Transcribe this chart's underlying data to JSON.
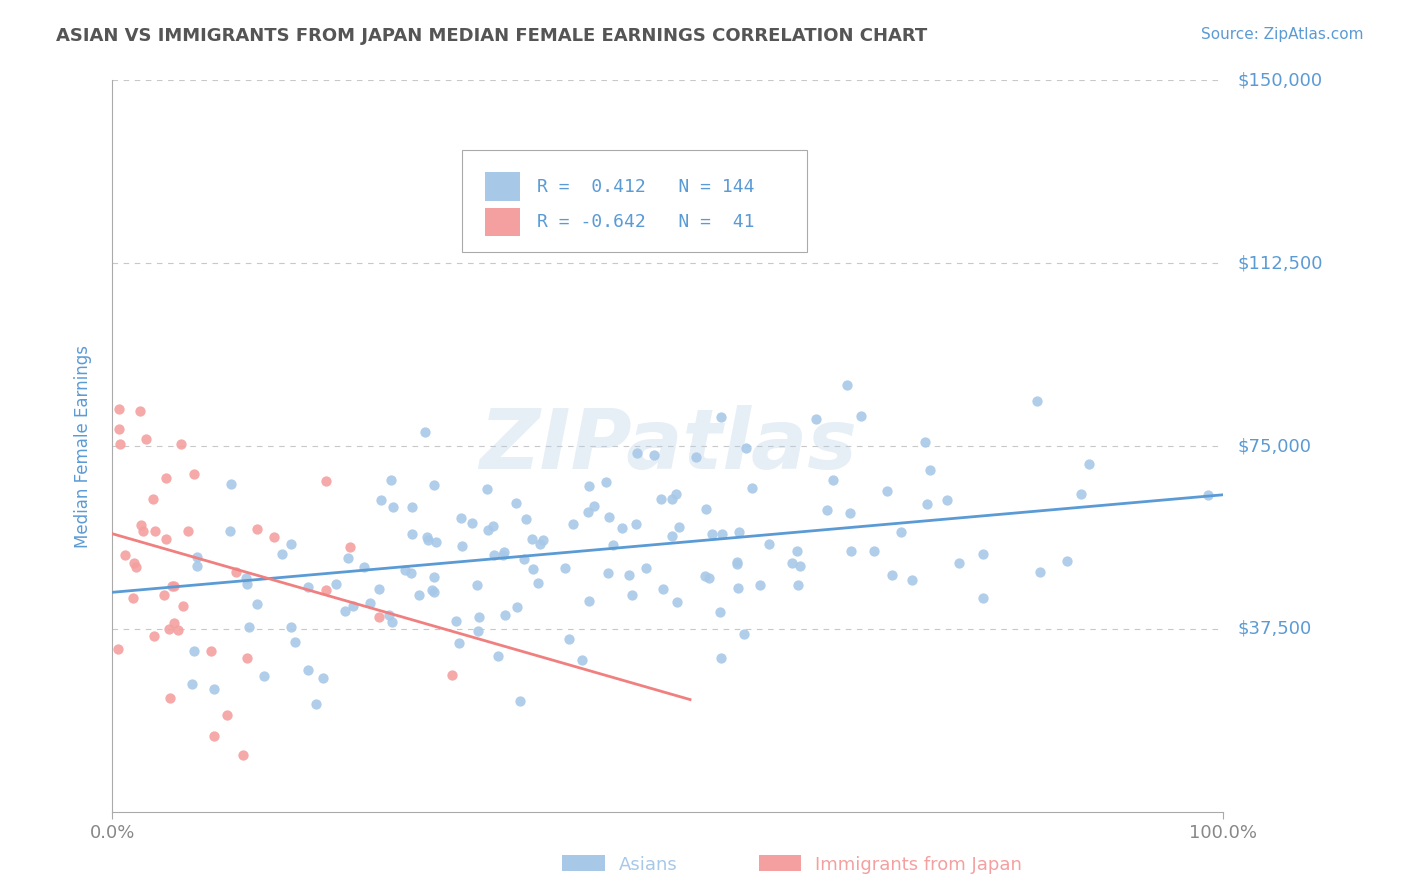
{
  "title": "ASIAN VS IMMIGRANTS FROM JAPAN MEDIAN FEMALE EARNINGS CORRELATION CHART",
  "source": "Source: ZipAtlas.com",
  "ylabel": "Median Female Earnings",
  "watermark": "ZIPatlas",
  "xlim": [
    0,
    1.0
  ],
  "ylim": [
    0,
    150000
  ],
  "yticks": [
    0,
    37500,
    75000,
    112500,
    150000
  ],
  "ytick_labels": [
    "",
    "$37,500",
    "$75,000",
    "$112,500",
    "$150,000"
  ],
  "background_color": "#ffffff",
  "grid_color": "#c8c8c8",
  "title_color": "#555555",
  "source_color": "#5b9bd5",
  "axis_label_color": "#5b9bd5",
  "ytick_color": "#5b9bd5",
  "xtick_color": "#888888",
  "legend_text_color": "#5b9bd5",
  "asian_color": "#a8c8e8",
  "japan_color": "#f4a0a0",
  "asian_line_color": "#5b9bd5",
  "japan_line_color": "#f08080",
  "R_asian": 0.412,
  "N_asian": 144,
  "R_japan": -0.642,
  "N_japan": 41,
  "asian_seed": 42,
  "japan_seed": 7,
  "legend_box_color_asian": "#a8c8e8",
  "legend_box_color_japan": "#f4a0a0",
  "asian_trend_y0": 45000,
  "asian_trend_y1": 65000,
  "japan_trend_y0": 57000,
  "japan_trend_x1": 0.52,
  "japan_trend_y1": 23000
}
